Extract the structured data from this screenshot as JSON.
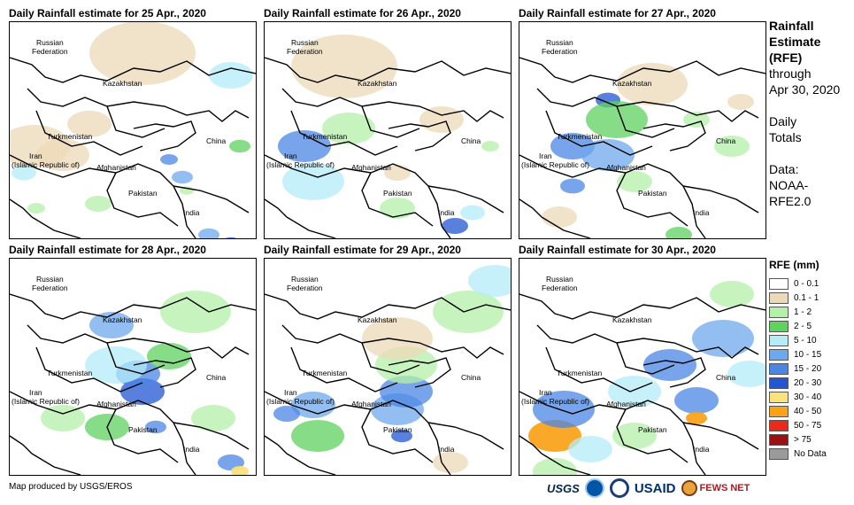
{
  "panels": [
    {
      "title": "Daily Rainfall estimate for 25 Apr., 2020",
      "rain": [
        [
          28,
          140,
          40,
          1
        ],
        [
          60,
          150,
          30,
          1
        ],
        [
          16,
          170,
          14,
          4
        ],
        [
          90,
          115,
          25,
          1
        ],
        [
          180,
          155,
          10,
          6
        ],
        [
          195,
          175,
          12,
          5
        ],
        [
          250,
          250,
          12,
          7
        ],
        [
          225,
          240,
          12,
          5
        ],
        [
          150,
          35,
          60,
          1
        ],
        [
          250,
          60,
          25,
          4
        ],
        [
          100,
          205,
          15,
          2
        ],
        [
          30,
          210,
          10,
          2
        ],
        [
          260,
          140,
          12,
          3
        ],
        [
          200,
          190,
          8,
          2
        ]
      ]
    },
    {
      "title": "Daily Rainfall estimate for 26 Apr., 2020",
      "rain": [
        [
          45,
          140,
          30,
          6
        ],
        [
          55,
          180,
          35,
          4
        ],
        [
          95,
          120,
          30,
          2
        ],
        [
          90,
          50,
          60,
          1
        ],
        [
          215,
          230,
          15,
          7
        ],
        [
          235,
          215,
          14,
          4
        ],
        [
          150,
          210,
          20,
          2
        ],
        [
          200,
          110,
          25,
          1
        ],
        [
          255,
          140,
          10,
          2
        ],
        [
          150,
          170,
          15,
          1
        ]
      ]
    },
    {
      "title": "Daily Rainfall estimate for 27 Apr., 2020",
      "rain": [
        [
          100,
          88,
          14,
          7
        ],
        [
          60,
          140,
          25,
          6
        ],
        [
          100,
          150,
          30,
          5
        ],
        [
          60,
          185,
          14,
          6
        ],
        [
          110,
          110,
          35,
          3
        ],
        [
          150,
          70,
          40,
          1
        ],
        [
          45,
          220,
          20,
          1
        ],
        [
          180,
          240,
          15,
          3
        ],
        [
          130,
          180,
          20,
          2
        ],
        [
          240,
          140,
          20,
          2
        ],
        [
          250,
          90,
          15,
          1
        ],
        [
          200,
          110,
          15,
          2
        ]
      ]
    },
    {
      "title": "Daily Rainfall estimate for 28 Apr., 2020",
      "rain": [
        [
          150,
          150,
          25,
          7
        ],
        [
          145,
          130,
          25,
          6
        ],
        [
          165,
          190,
          12,
          6
        ],
        [
          115,
          75,
          25,
          5
        ],
        [
          120,
          120,
          35,
          4
        ],
        [
          180,
          110,
          25,
          3
        ],
        [
          210,
          60,
          40,
          2
        ],
        [
          60,
          180,
          25,
          2
        ],
        [
          230,
          180,
          25,
          2
        ],
        [
          250,
          230,
          15,
          6
        ],
        [
          260,
          240,
          10,
          8
        ],
        [
          110,
          190,
          25,
          3
        ]
      ]
    },
    {
      "title": "Daily Rainfall estimate for 29 Apr., 2020",
      "rain": [
        [
          155,
          200,
          12,
          7
        ],
        [
          150,
          170,
          30,
          5
        ],
        [
          160,
          150,
          30,
          6
        ],
        [
          55,
          165,
          25,
          5
        ],
        [
          60,
          200,
          30,
          3
        ],
        [
          160,
          120,
          35,
          2
        ],
        [
          230,
          60,
          40,
          2
        ],
        [
          260,
          25,
          30,
          4
        ],
        [
          150,
          90,
          40,
          1
        ],
        [
          210,
          230,
          20,
          1
        ],
        [
          25,
          175,
          15,
          6
        ]
      ]
    },
    {
      "title": "Daily Rainfall estimate for 30 Apr., 2020",
      "rain": [
        [
          40,
          200,
          30,
          9
        ],
        [
          50,
          170,
          35,
          6
        ],
        [
          80,
          215,
          25,
          4
        ],
        [
          170,
          120,
          30,
          6
        ],
        [
          230,
          90,
          35,
          5
        ],
        [
          200,
          160,
          25,
          6
        ],
        [
          200,
          180,
          12,
          9
        ],
        [
          260,
          130,
          25,
          4
        ],
        [
          130,
          150,
          30,
          4
        ],
        [
          240,
          40,
          25,
          2
        ],
        [
          40,
          240,
          25,
          2
        ],
        [
          130,
          200,
          25,
          2
        ]
      ]
    }
  ],
  "sidebar": {
    "heading_line1": "Rainfall",
    "heading_line2": "Estimate",
    "heading_line3": "(RFE)",
    "through": "through",
    "through_date": "Apr 30, 2020",
    "daily": "Daily",
    "totals": "Totals",
    "data_label": "Data:",
    "data_source_line1": "NOAA-",
    "data_source_line2": "RFE2.0"
  },
  "legend": {
    "title": "RFE (mm)",
    "items": [
      {
        "label": "0 - 0.1",
        "color": "#ffffff"
      },
      {
        "label": "0.1 - 1",
        "color": "#ecd9b8"
      },
      {
        "label": "1 - 2",
        "color": "#b4f0a8"
      },
      {
        "label": "2 - 5",
        "color": "#5fd25f"
      },
      {
        "label": "5 - 10",
        "color": "#b4ecf8"
      },
      {
        "label": "10 - 15",
        "color": "#6ea8ee"
      },
      {
        "label": "15 - 20",
        "color": "#4a86e4"
      },
      {
        "label": "20 - 30",
        "color": "#2356d2"
      },
      {
        "label": "30 - 40",
        "color": "#fbe27a"
      },
      {
        "label": "40 - 50",
        "color": "#f9a31b"
      },
      {
        "label": "50 - 75",
        "color": "#eb2a1a"
      },
      {
        "label": "> 75",
        "color": "#9b1010"
      },
      {
        "label": "No Data",
        "color": "#9a9a9a"
      }
    ]
  },
  "map_labels": {
    "russia_1": "Russian",
    "russia_2": "Federation",
    "kazakhstan": "Kazakhstan",
    "turkmenistan": "Turkmenistan",
    "iran_1": "Iran",
    "iran_2": "(Islamic Republic of)",
    "afghanistan": "Afghanistan",
    "pakistan": "Pakistan",
    "china": "China",
    "india": "India"
  },
  "credit": "Map produced by USGS/EROS",
  "logos": {
    "usgs": "USGS",
    "usaid": "USAID",
    "fews": "FEWS NET"
  },
  "icons": [
    "usgs-logo",
    "noaa-logo",
    "nws-logo",
    "usaid-logo",
    "fewsnet-logo"
  ]
}
